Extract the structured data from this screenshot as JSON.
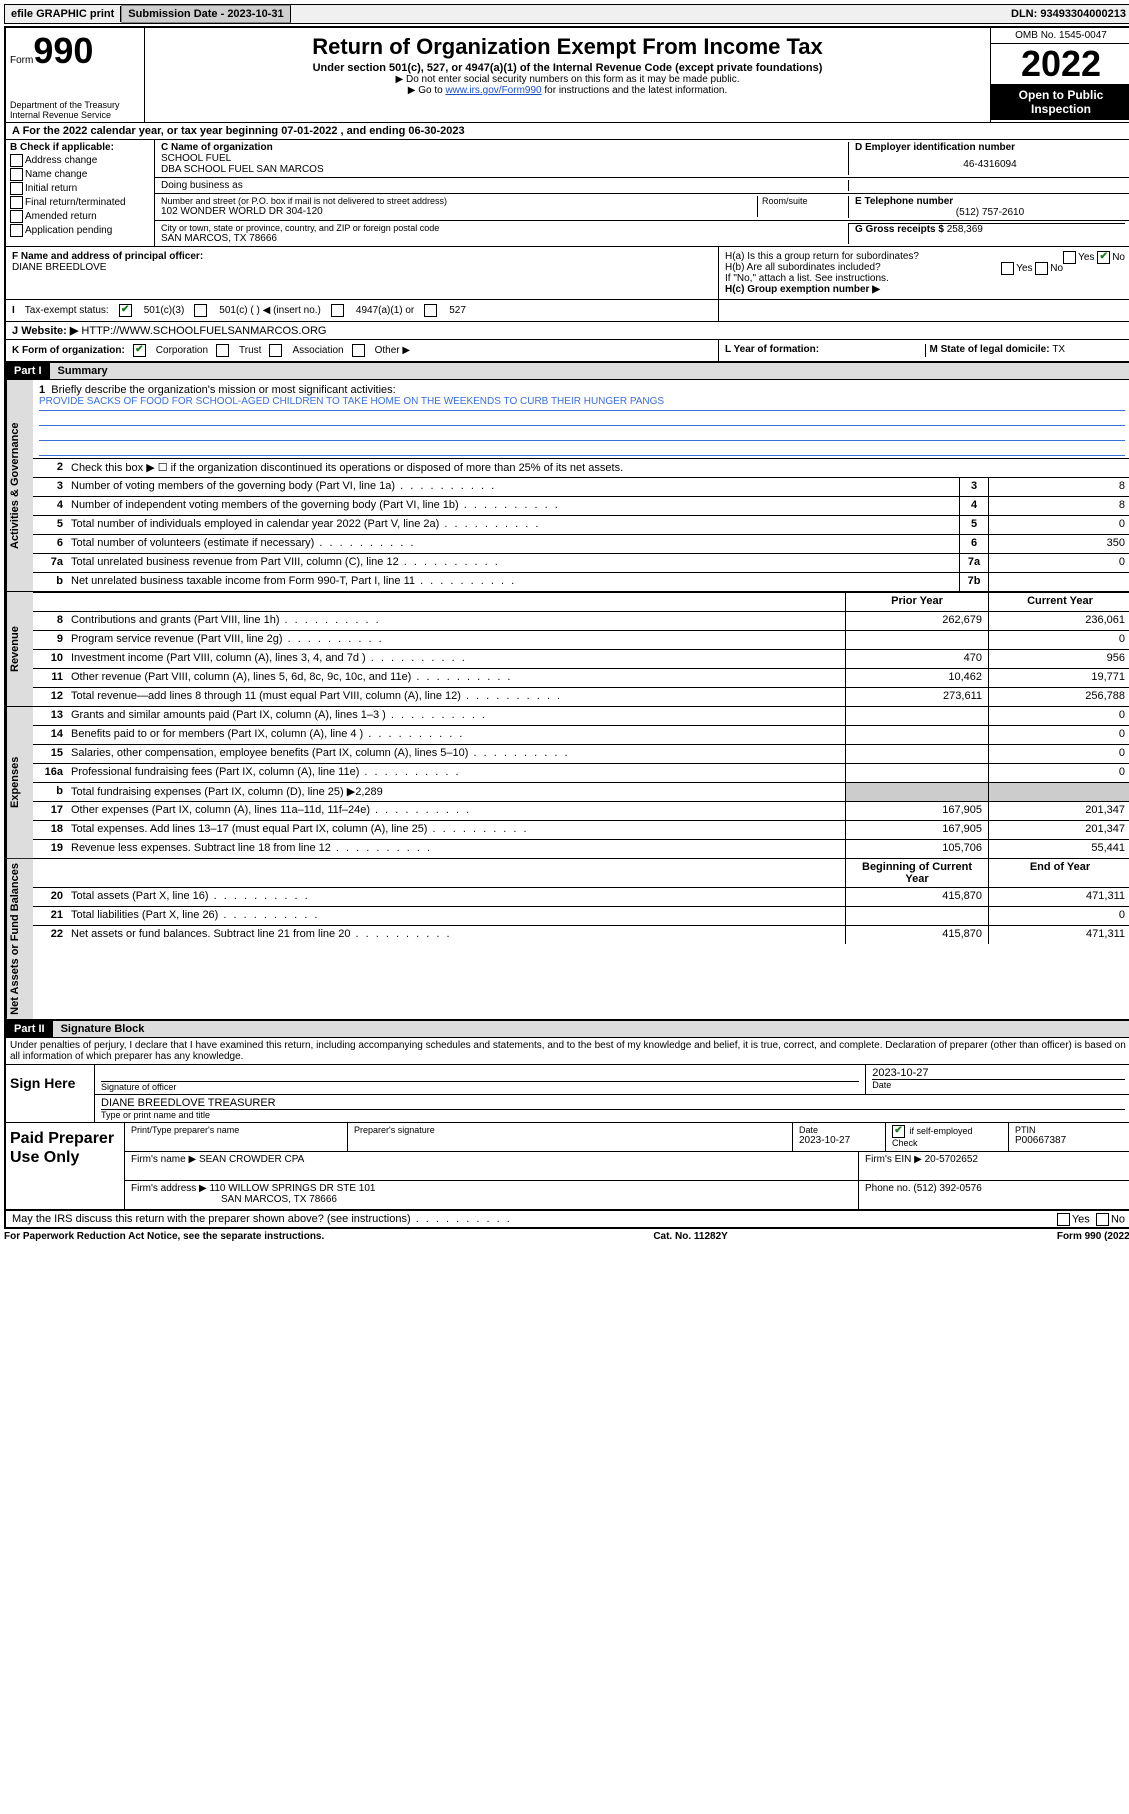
{
  "topbar": {
    "efile": "efile GRAPHIC print",
    "submission_label": "Submission Date - 2023-10-31",
    "dln_label": "DLN: 93493304000213"
  },
  "header": {
    "form_word": "Form",
    "form_number": "990",
    "dept": "Department of the Treasury",
    "irs": "Internal Revenue Service",
    "title": "Return of Organization Exempt From Income Tax",
    "subtitle": "Under section 501(c), 527, or 4947(a)(1) of the Internal Revenue Code (except private foundations)",
    "note1": "▶ Do not enter social security numbers on this form as it may be made public.",
    "note2_pre": "▶ Go to ",
    "note2_link": "www.irs.gov/Form990",
    "note2_post": " for instructions and the latest information.",
    "omb": "OMB No. 1545-0047",
    "tax_year": "2022",
    "open_pub": "Open to Public Inspection"
  },
  "lineA": "A For the 2022 calendar year, or tax year beginning 07-01-2022   , and ending 06-30-2023",
  "boxB": {
    "label": "B Check if applicable:",
    "opts": [
      "Address change",
      "Name change",
      "Initial return",
      "Final return/terminated",
      "Amended return",
      "Application pending"
    ]
  },
  "boxC": {
    "c_label": "C Name of organization",
    "org_name": "SCHOOL FUEL",
    "dba": "DBA SCHOOL FUEL SAN MARCOS",
    "doing_business": "Doing business as",
    "street_label": "Number and street (or P.O. box if mail is not delivered to street address)",
    "room_label": "Room/suite",
    "street": "102 WONDER WORLD DR 304-120",
    "city_label": "City or town, state or province, country, and ZIP or foreign postal code",
    "city": "SAN MARCOS, TX  78666"
  },
  "boxD": {
    "label": "D Employer identification number",
    "ein": "46-4316094"
  },
  "boxE": {
    "label": "E Telephone number",
    "phone": "(512) 757-2610"
  },
  "boxG": {
    "label": "G Gross receipts $ ",
    "amount": "258,369"
  },
  "rowF": {
    "label": "F Name and address of principal officer:",
    "name": "DIANE BREEDLOVE"
  },
  "rowH": {
    "ha": "H(a)  Is this a group return for subordinates?",
    "hb": "H(b)  Are all subordinates included?",
    "hb_note": "If \"No,\" attach a list. See instructions.",
    "hc": "H(c)  Group exemption number ▶",
    "yes": "Yes",
    "no": "No"
  },
  "rowI": {
    "label": "Tax-exempt status:",
    "opt1": "501(c)(3)",
    "opt2": "501(c) (  ) ◀ (insert no.)",
    "opt3": "4947(a)(1) or",
    "opt4": "527"
  },
  "rowJ": {
    "label": "Website: ▶",
    "url": "HTTP://WWW.SCHOOLFUELSANMARCOS.ORG"
  },
  "rowK": {
    "label": "K Form of organization:",
    "opts": [
      "Corporation",
      "Trust",
      "Association",
      "Other ▶"
    ]
  },
  "rowL": {
    "label": "L Year of formation:"
  },
  "rowM": {
    "label": "M State of legal domicile: ",
    "state": "TX"
  },
  "part1": {
    "header": "Part I",
    "title": "Summary",
    "tabs": {
      "gov": "Activities & Governance",
      "rev": "Revenue",
      "exp": "Expenses",
      "net": "Net Assets or Fund Balances"
    },
    "line1_label": "Briefly describe the organization's mission or most significant activities:",
    "line1_text": "PROVIDE SACKS OF FOOD FOR SCHOOL-AGED CHILDREN TO TAKE HOME ON THE WEEKENDS TO CURB THEIR HUNGER PANGS",
    "line2": "Check this box ▶ ☐  if the organization discontinued its operations or disposed of more than 25% of its net assets.",
    "col_prior": "Prior Year",
    "col_current": "Current Year",
    "col_begin": "Beginning of Current Year",
    "col_end": "End of Year",
    "lines_gov": [
      {
        "n": "3",
        "label": "Number of voting members of the governing body (Part VI, line 1a)",
        "box": "3",
        "val": "8"
      },
      {
        "n": "4",
        "label": "Number of independent voting members of the governing body (Part VI, line 1b)",
        "box": "4",
        "val": "8"
      },
      {
        "n": "5",
        "label": "Total number of individuals employed in calendar year 2022 (Part V, line 2a)",
        "box": "5",
        "val": "0"
      },
      {
        "n": "6",
        "label": "Total number of volunteers (estimate if necessary)",
        "box": "6",
        "val": "350"
      },
      {
        "n": "7a",
        "label": "Total unrelated business revenue from Part VIII, column (C), line 12",
        "box": "7a",
        "val": "0"
      },
      {
        "n": "b",
        "label": "Net unrelated business taxable income from Form 990-T, Part I, line 11",
        "box": "7b",
        "val": ""
      }
    ],
    "lines_rev": [
      {
        "n": "8",
        "label": "Contributions and grants (Part VIII, line 1h)",
        "p": "262,679",
        "c": "236,061"
      },
      {
        "n": "9",
        "label": "Program service revenue (Part VIII, line 2g)",
        "p": "",
        "c": "0"
      },
      {
        "n": "10",
        "label": "Investment income (Part VIII, column (A), lines 3, 4, and 7d )",
        "p": "470",
        "c": "956"
      },
      {
        "n": "11",
        "label": "Other revenue (Part VIII, column (A), lines 5, 6d, 8c, 9c, 10c, and 11e)",
        "p": "10,462",
        "c": "19,771"
      },
      {
        "n": "12",
        "label": "Total revenue—add lines 8 through 11 (must equal Part VIII, column (A), line 12)",
        "p": "273,611",
        "c": "256,788"
      }
    ],
    "lines_exp": [
      {
        "n": "13",
        "label": "Grants and similar amounts paid (Part IX, column (A), lines 1–3 )",
        "p": "",
        "c": "0"
      },
      {
        "n": "14",
        "label": "Benefits paid to or for members (Part IX, column (A), line 4 )",
        "p": "",
        "c": "0"
      },
      {
        "n": "15",
        "label": "Salaries, other compensation, employee benefits (Part IX, column (A), lines 5–10)",
        "p": "",
        "c": "0"
      },
      {
        "n": "16a",
        "label": "Professional fundraising fees (Part IX, column (A), line 11e)",
        "p": "",
        "c": "0"
      },
      {
        "n": "b",
        "label": "Total fundraising expenses (Part IX, column (D), line 25) ▶2,289",
        "gray": true
      },
      {
        "n": "17",
        "label": "Other expenses (Part IX, column (A), lines 11a–11d, 11f–24e)",
        "p": "167,905",
        "c": "201,347"
      },
      {
        "n": "18",
        "label": "Total expenses. Add lines 13–17 (must equal Part IX, column (A), line 25)",
        "p": "167,905",
        "c": "201,347"
      },
      {
        "n": "19",
        "label": "Revenue less expenses. Subtract line 18 from line 12",
        "p": "105,706",
        "c": "55,441"
      }
    ],
    "lines_net": [
      {
        "n": "20",
        "label": "Total assets (Part X, line 16)",
        "p": "415,870",
        "c": "471,311"
      },
      {
        "n": "21",
        "label": "Total liabilities (Part X, line 26)",
        "p": "",
        "c": "0"
      },
      {
        "n": "22",
        "label": "Net assets or fund balances. Subtract line 21 from line 20",
        "p": "415,870",
        "c": "471,311"
      }
    ]
  },
  "part2": {
    "header": "Part II",
    "title": "Signature Block",
    "perjury": "Under penalties of perjury, I declare that I have examined this return, including accompanying schedules and statements, and to the best of my knowledge and belief, it is true, correct, and complete. Declaration of preparer (other than officer) is based on all information of which preparer has any knowledge.",
    "sign_here": "Sign Here",
    "sig_officer": "Signature of officer",
    "sig_date_label": "Date",
    "sig_date": "2023-10-27",
    "officer_name": "DIANE BREEDLOVE TREASURER",
    "type_name_label": "Type or print name and title",
    "paid_label": "Paid Preparer Use Only",
    "prep_name_label": "Print/Type preparer's name",
    "prep_sig_label": "Preparer's signature",
    "prep_date_label": "Date",
    "prep_date": "2023-10-27",
    "check_self_label": "Check ☑ if self-employed",
    "ptin_label": "PTIN",
    "ptin": "P00667387",
    "firm_name_label": "Firm's name    ▶",
    "firm_name": "SEAN CROWDER CPA",
    "firm_ein_label": "Firm's EIN ▶",
    "firm_ein": "20-5702652",
    "firm_addr_label": "Firm's address ▶",
    "firm_addr1": "110 WILLOW SPRINGS DR STE 101",
    "firm_addr2": "SAN MARCOS, TX  78666",
    "firm_phone_label": "Phone no. ",
    "firm_phone": "(512) 392-0576",
    "discuss": "May the IRS discuss this return with the preparer shown above? (see instructions)"
  },
  "footer": {
    "left": "For Paperwork Reduction Act Notice, see the separate instructions.",
    "mid": "Cat. No. 11282Y",
    "right": "Form 990 (2022)"
  }
}
